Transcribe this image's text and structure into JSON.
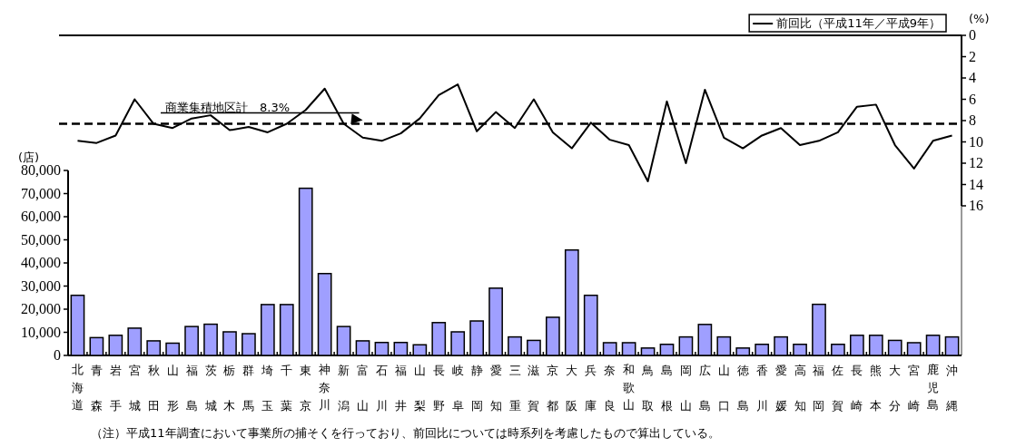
{
  "chart_data": [
    {
      "type": "line",
      "categories": [
        null,
        null,
        null,
        null,
        null,
        null,
        null,
        null,
        null,
        null,
        null,
        null,
        null,
        null,
        null,
        null,
        null,
        null,
        null,
        null,
        null,
        null,
        null,
        null,
        null,
        null,
        null,
        null,
        null,
        null,
        null,
        null,
        null,
        null,
        null,
        null,
        null,
        null,
        null,
        null,
        null,
        null,
        null,
        null,
        null,
        null,
        null
      ],
      "series": [
        {
          "name": "前回比（平成11年／平成9年）",
          "color": "#000000",
          "values": [
            9.9,
            10.1,
            9.4,
            6.0,
            8.3,
            8.7,
            7.8,
            7.5,
            8.9,
            8.6,
            9.1,
            8.3,
            7.0,
            5.0,
            8.3,
            9.6,
            9.9,
            9.2,
            7.8,
            5.6,
            4.6,
            9.0,
            7.2,
            8.7,
            6.0,
            9.1,
            10.6,
            8.2,
            9.8,
            10.3,
            13.7,
            6.2,
            12.0,
            5.1,
            9.6,
            10.6,
            9.4,
            8.7,
            10.3,
            9.9,
            9.1,
            6.7,
            6.5,
            10.3,
            12.5,
            9.9,
            9.4
          ]
        }
      ],
      "ylabel": "(%)",
      "ylim": [
        16,
        0
      ],
      "yticks": [
        0,
        2,
        4,
        6,
        8,
        10,
        12,
        14,
        16
      ],
      "tick_labels": "y",
      "ref_lines": [
        {
          "axis": "y",
          "value": 8.3,
          "label": "商業集積地区計　8.3%",
          "line_style": "dashed",
          "color": "#000000"
        }
      ],
      "legend": "top right"
    },
    {
      "type": "bar",
      "categories": [
        "北海道",
        "青森",
        "岩手",
        "宮城",
        "秋田",
        "山形",
        "福島",
        "茨城",
        "栃木",
        "群馬",
        "埼玉",
        "千葉",
        "東京",
        "神奈川",
        "新潟",
        "富山",
        "石川",
        "福井",
        "山梨",
        "長野",
        "岐阜",
        "静岡",
        "愛知",
        "三重",
        "滋賀",
        "京都",
        "大阪",
        "兵庫",
        "奈良",
        "和歌山",
        "鳥取",
        "島根",
        "岡山",
        "広島",
        "山口",
        "徳島",
        "香川",
        "愛媛",
        "高知",
        "福岡",
        "佐賀",
        "長崎",
        "熊本",
        "大分",
        "宮崎",
        "鹿児島",
        "沖縄"
      ],
      "color": "#9f9fff",
      "values": [
        26000,
        7700,
        8700,
        11800,
        6300,
        5300,
        12500,
        13500,
        10200,
        9400,
        22000,
        22000,
        72300,
        35400,
        12500,
        6300,
        5600,
        5600,
        4600,
        14200,
        10200,
        14900,
        29100,
        8000,
        6500,
        16500,
        45600,
        26000,
        5500,
        5500,
        3200,
        4800,
        8000,
        13400,
        8000,
        3200,
        4800,
        8000,
        4800,
        22100,
        4800,
        8700,
        8700,
        6500,
        5500,
        8700,
        8000
      ],
      "ylabel": "(店)",
      "ylim": [
        0,
        80000
      ],
      "yticks": [
        0,
        {
          "value": 10000,
          "label": "10,000"
        },
        {
          "value": 20000,
          "label": "20,000"
        },
        {
          "value": 30000,
          "label": "30,000"
        },
        {
          "value": 40000,
          "label": "40,000"
        },
        {
          "value": 50000,
          "label": "50,000"
        },
        {
          "value": 60000,
          "label": "60,000"
        },
        {
          "value": 70000,
          "label": "70,000"
        },
        {
          "value": 80000,
          "label": "80,000"
        }
      ],
      "annotations": [
        "（注）平成11年調査において事業所の捕そくを行っており、前回比については時系列を考慮したもので算出している。"
      ]
    }
  ]
}
